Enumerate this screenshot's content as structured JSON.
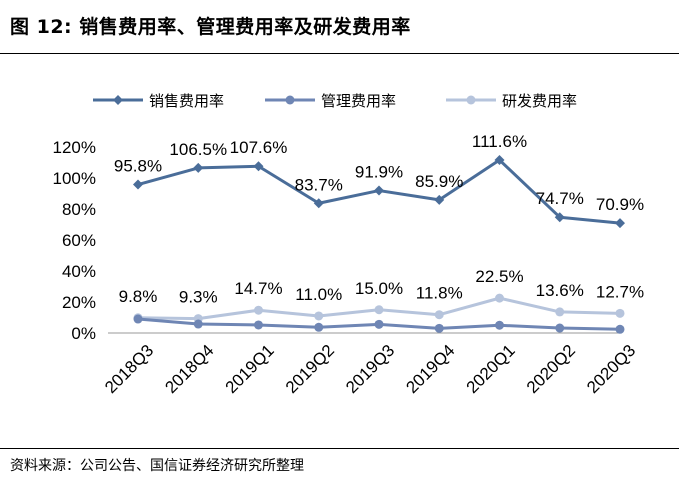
{
  "title": "图 12:  销售费用率、管理费用率及研发费用率",
  "source": "资料来源：公司公告、国信证券经济研究所整理",
  "chart_data": {
    "type": "line",
    "categories": [
      "2018Q3",
      "2018Q4",
      "2019Q1",
      "2019Q2",
      "2019Q3",
      "2019Q4",
      "2020Q1",
      "2020Q2",
      "2020Q3"
    ],
    "ylim": [
      0,
      120
    ],
    "yticks": [
      "0%",
      "20%",
      "40%",
      "60%",
      "80%",
      "100%",
      "120%"
    ],
    "legend_position": "top",
    "series": [
      {
        "name": "销售费用率",
        "color": "#4a6d99",
        "marker": "diamond",
        "values": [
          95.8,
          106.5,
          107.6,
          83.7,
          91.9,
          85.9,
          111.6,
          74.7,
          70.9
        ],
        "labels": [
          "95.8%",
          "106.5%",
          "107.6%",
          "83.7%",
          "91.9%",
          "85.9%",
          "111.6%",
          "74.7%",
          "70.9%"
        ]
      },
      {
        "name": "管理费用率",
        "color": "#6f86b4",
        "marker": "circle",
        "values": [
          9.0,
          5.8,
          5.2,
          3.7,
          5.6,
          3.0,
          5.0,
          3.2,
          2.4
        ]
      },
      {
        "name": "研发费用率",
        "color": "#b6c4dc",
        "marker": "circle",
        "values": [
          9.8,
          9.3,
          14.7,
          11.0,
          15.0,
          11.8,
          22.5,
          13.6,
          12.7
        ],
        "labels": [
          "9.8%",
          "9.3%",
          "14.7%",
          "11.0%",
          "15.0%",
          "11.8%",
          "22.5%",
          "13.6%",
          "12.7%"
        ]
      }
    ]
  }
}
